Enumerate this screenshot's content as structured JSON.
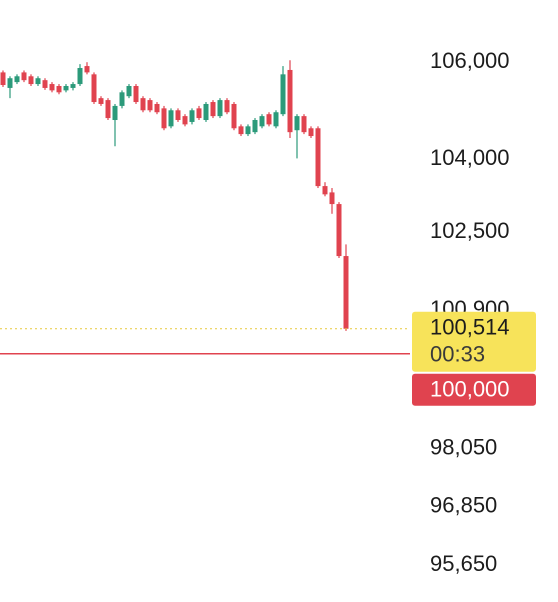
{
  "chart_data": {
    "type": "candlestick",
    "up_color": "#2b9a7a",
    "down_color": "#e0434f",
    "ylim": [
      94890,
      107280
    ],
    "yticks": [
      {
        "value": 106000,
        "label": "106,000"
      },
      {
        "value": 104000,
        "label": "104,000"
      },
      {
        "value": 102500,
        "label": "102,500"
      },
      {
        "value": 100900,
        "label": "100,900"
      },
      {
        "value": 98050,
        "label": "98,050"
      },
      {
        "value": 96850,
        "label": "96,850"
      },
      {
        "value": 95650,
        "label": "95,650"
      }
    ],
    "candles": [
      [
        105790,
        105830,
        105490,
        105530
      ],
      [
        105470,
        105710,
        105260,
        105670
      ],
      [
        105590,
        105750,
        105550,
        105710
      ],
      [
        105790,
        105830,
        105590,
        105630
      ],
      [
        105710,
        105750,
        105510,
        105550
      ],
      [
        105550,
        105710,
        105510,
        105670
      ],
      [
        105630,
        105670,
        105430,
        105470
      ],
      [
        105550,
        105590,
        105380,
        105420
      ],
      [
        105510,
        105550,
        105340,
        105380
      ],
      [
        105420,
        105550,
        105380,
        105510
      ],
      [
        105470,
        105590,
        105420,
        105550
      ],
      [
        105550,
        105960,
        105510,
        105880
      ],
      [
        105920,
        106000,
        105750,
        105790
      ],
      [
        105750,
        105790,
        105140,
        105180
      ],
      [
        105260,
        105300,
        105100,
        105140
      ],
      [
        105220,
        105260,
        104810,
        104850
      ],
      [
        104810,
        105140,
        104270,
        105100
      ],
      [
        105100,
        105420,
        105050,
        105380
      ],
      [
        105300,
        105550,
        105260,
        105510
      ],
      [
        105510,
        105550,
        105140,
        105180
      ],
      [
        105260,
        105300,
        104970,
        105010
      ],
      [
        105220,
        105260,
        104970,
        105010
      ],
      [
        105140,
        105180,
        104930,
        104970
      ],
      [
        105050,
        105100,
        104600,
        104640
      ],
      [
        104680,
        105050,
        104640,
        105010
      ],
      [
        105010,
        105050,
        104770,
        104810
      ],
      [
        104890,
        104930,
        104680,
        104720
      ],
      [
        104770,
        105050,
        104720,
        105010
      ],
      [
        105050,
        105100,
        104810,
        104850
      ],
      [
        104810,
        105180,
        104770,
        105140
      ],
      [
        105180,
        105220,
        104850,
        104890
      ],
      [
        104890,
        105260,
        104850,
        105220
      ],
      [
        105220,
        105260,
        104930,
        104970
      ],
      [
        105140,
        105180,
        104600,
        104640
      ],
      [
        104680,
        104720,
        104480,
        104520
      ],
      [
        104520,
        104720,
        104480,
        104680
      ],
      [
        104560,
        104850,
        104520,
        104810
      ],
      [
        104680,
        104930,
        104640,
        104890
      ],
      [
        104930,
        104970,
        104680,
        104720
      ],
      [
        104680,
        105010,
        104640,
        104970
      ],
      [
        104930,
        105920,
        104890,
        105750
      ],
      [
        105840,
        106040,
        104440,
        104560
      ],
      [
        104600,
        104930,
        104020,
        104890
      ],
      [
        104890,
        104930,
        104520,
        104560
      ],
      [
        104640,
        104680,
        104440,
        104480
      ],
      [
        104640,
        104680,
        103410,
        103450
      ],
      [
        103450,
        103530,
        103240,
        103280
      ],
      [
        103320,
        103410,
        102880,
        103080
      ],
      [
        103080,
        103120,
        101970,
        102010
      ],
      [
        102010,
        102250,
        100470,
        100514
      ]
    ],
    "last_price": {
      "value": 100514,
      "label": "100,514",
      "countdown": "00:33",
      "color": "#f7e35a"
    },
    "alert_line": {
      "value": 100000,
      "label": "100,000",
      "color": "#e0434f"
    }
  }
}
